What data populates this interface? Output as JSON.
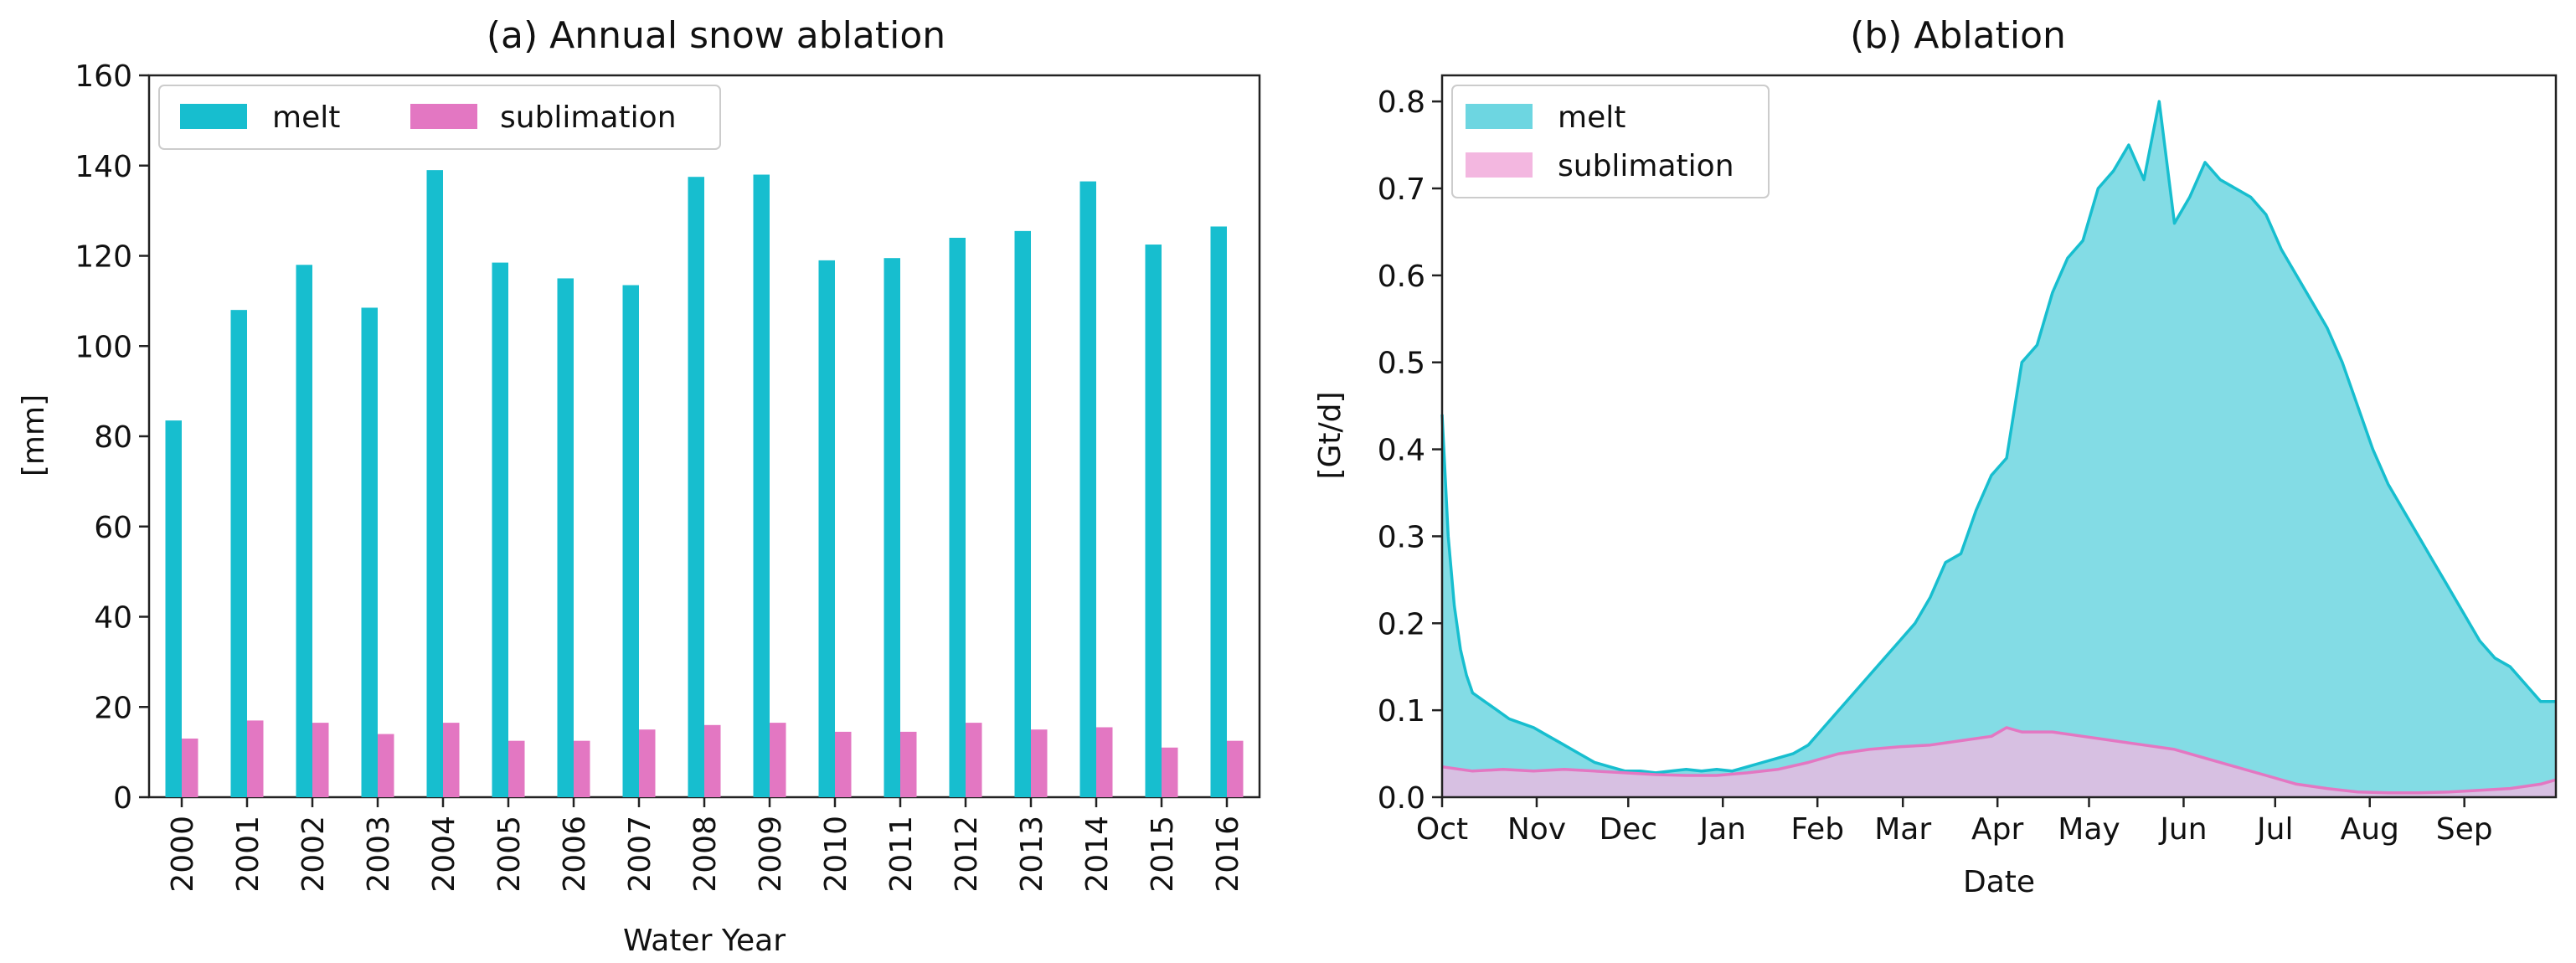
{
  "chart_data": [
    {
      "type": "bar",
      "title": "(a) Annual snow ablation",
      "xlabel": "Water Year",
      "ylabel": "[mm]",
      "ylim": [
        0,
        160
      ],
      "yticks": [
        0,
        20,
        40,
        60,
        80,
        100,
        120,
        140,
        160
      ],
      "categories": [
        "2000",
        "2001",
        "2002",
        "2003",
        "2004",
        "2005",
        "2006",
        "2007",
        "2008",
        "2009",
        "2010",
        "2011",
        "2012",
        "2013",
        "2014",
        "2015",
        "2016"
      ],
      "legend_position": "top-left",
      "series": [
        {
          "name": "melt",
          "color": "#17becf",
          "values": [
            83.5,
            108,
            118,
            108.5,
            139,
            118.5,
            115,
            113.5,
            137.5,
            138,
            119,
            119.5,
            124,
            125.5,
            136.5,
            122.5,
            126.5
          ]
        },
        {
          "name": "sublimation",
          "color": "#e377c2",
          "values": [
            13,
            17,
            16.5,
            14,
            16.5,
            12.5,
            12.5,
            15,
            16,
            16.5,
            14.5,
            14.5,
            16.5,
            15,
            15.5,
            11,
            12.5
          ]
        }
      ]
    },
    {
      "type": "area",
      "title": "(b) Ablation",
      "xlabel": "Date",
      "ylabel": "[Gt/d]",
      "ylim": [
        0,
        0.83
      ],
      "xlim": [
        0,
        365
      ],
      "yticks": [
        0.0,
        0.1,
        0.2,
        0.3,
        0.4,
        0.5,
        0.6,
        0.7,
        0.8
      ],
      "ytick_labels": [
        "0.0",
        "0.1",
        "0.2",
        "0.3",
        "0.4",
        "0.5",
        "0.6",
        "0.7",
        "0.8"
      ],
      "xticks": [
        {
          "day": 0,
          "label": "Oct"
        },
        {
          "day": 31,
          "label": "Nov"
        },
        {
          "day": 61,
          "label": "Dec"
        },
        {
          "day": 92,
          "label": "Jan"
        },
        {
          "day": 123,
          "label": "Feb"
        },
        {
          "day": 151,
          "label": "Mar"
        },
        {
          "day": 182,
          "label": "Apr"
        },
        {
          "day": 212,
          "label": "May"
        },
        {
          "day": 243,
          "label": "Jun"
        },
        {
          "day": 273,
          "label": "Jul"
        },
        {
          "day": 304,
          "label": "Aug"
        },
        {
          "day": 335,
          "label": "Sep"
        }
      ],
      "legend_position": "top-left",
      "series": [
        {
          "name": "melt",
          "color": "#17becf",
          "fill": "#6dd6e1",
          "x": [
            0,
            2,
            4,
            6,
            8,
            10,
            14,
            18,
            22,
            26,
            30,
            35,
            40,
            45,
            50,
            55,
            60,
            65,
            70,
            75,
            80,
            85,
            90,
            95,
            100,
            105,
            110,
            115,
            120,
            125,
            130,
            135,
            140,
            145,
            150,
            155,
            160,
            165,
            170,
            175,
            180,
            185,
            190,
            195,
            200,
            205,
            210,
            215,
            220,
            225,
            230,
            235,
            240,
            245,
            250,
            255,
            260,
            265,
            270,
            275,
            280,
            285,
            290,
            295,
            300,
            305,
            310,
            315,
            320,
            325,
            330,
            335,
            340,
            345,
            350,
            355,
            360,
            365
          ],
          "y": [
            0.44,
            0.3,
            0.22,
            0.17,
            0.14,
            0.12,
            0.11,
            0.1,
            0.09,
            0.085,
            0.08,
            0.07,
            0.06,
            0.05,
            0.04,
            0.035,
            0.03,
            0.03,
            0.028,
            0.03,
            0.032,
            0.03,
            0.032,
            0.03,
            0.035,
            0.04,
            0.045,
            0.05,
            0.06,
            0.08,
            0.1,
            0.12,
            0.14,
            0.16,
            0.18,
            0.2,
            0.23,
            0.27,
            0.28,
            0.33,
            0.37,
            0.39,
            0.5,
            0.52,
            0.58,
            0.62,
            0.64,
            0.7,
            0.72,
            0.75,
            0.71,
            0.8,
            0.66,
            0.69,
            0.73,
            0.71,
            0.7,
            0.69,
            0.67,
            0.63,
            0.6,
            0.57,
            0.54,
            0.5,
            0.45,
            0.4,
            0.36,
            0.33,
            0.3,
            0.27,
            0.24,
            0.21,
            0.18,
            0.16,
            0.15,
            0.13,
            0.11,
            0.11
          ]
        },
        {
          "name": "sublimation",
          "color": "#e377c2",
          "fill": "#f3b7e0",
          "x": [
            0,
            10,
            20,
            30,
            40,
            50,
            60,
            70,
            80,
            90,
            100,
            110,
            120,
            130,
            140,
            150,
            160,
            170,
            180,
            185,
            190,
            200,
            210,
            220,
            230,
            240,
            250,
            260,
            270,
            280,
            290,
            300,
            310,
            320,
            330,
            340,
            350,
            360,
            365
          ],
          "y": [
            0.035,
            0.03,
            0.032,
            0.03,
            0.032,
            0.03,
            0.028,
            0.026,
            0.025,
            0.025,
            0.028,
            0.032,
            0.04,
            0.05,
            0.055,
            0.058,
            0.06,
            0.065,
            0.07,
            0.08,
            0.075,
            0.075,
            0.07,
            0.065,
            0.06,
            0.055,
            0.045,
            0.035,
            0.025,
            0.015,
            0.01,
            0.006,
            0.005,
            0.005,
            0.006,
            0.008,
            0.01,
            0.015,
            0.02
          ]
        }
      ]
    }
  ]
}
